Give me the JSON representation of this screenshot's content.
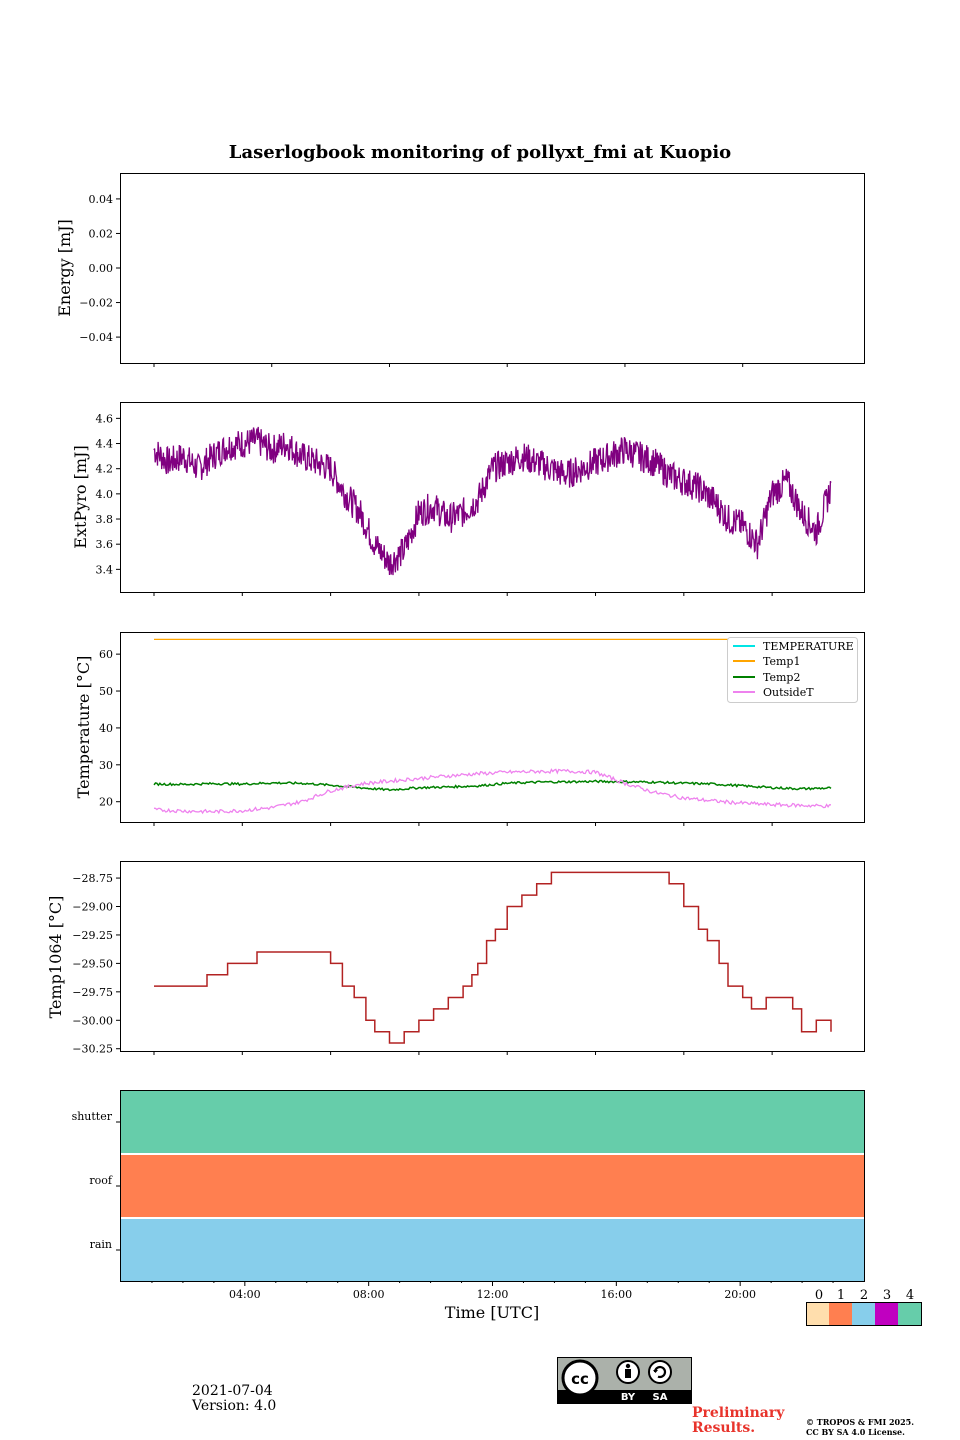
{
  "title": "Laserlogbook monitoring of pollyxt_fmi at Kuopio",
  "footer": {
    "date": "2021-07-04",
    "version": "Version: 4.0",
    "preliminary_line1": "Preliminary",
    "preliminary_line2": "Results.",
    "copyright_line1": "© TROPOS & FMI 2025.",
    "copyright_line2": "CC BY SA 4.0 License.",
    "cc_icon": "cc-by-sa-badge",
    "cc_by": "BY",
    "cc_sa": "SA"
  },
  "colors": {
    "extpyro": "#800080",
    "temperature": "#00e5e5",
    "temp1": "#ffa500",
    "temp2": "#008000",
    "outside": "#ee82ee",
    "temp1064": "#b22222",
    "status0": "#ffdead",
    "status1": "#ff7f50",
    "status2": "#87ceeb",
    "status3": "#c000c0",
    "status4": "#66cdaa"
  },
  "chart_data": [
    {
      "type": "line",
      "panel": "energy",
      "ylabel": "Energy [mJ]",
      "ylim": [
        -0.055,
        0.055
      ],
      "yticks": [
        0.04,
        0.02,
        0.0,
        -0.02,
        -0.04
      ],
      "ytick_labels": [
        "0.04",
        "0.02",
        "0.00",
        "−0.02",
        "−0.04"
      ],
      "series": []
    },
    {
      "type": "line",
      "panel": "extpyro",
      "ylabel": "ExtPyro [mJ]",
      "ylim": [
        3.22,
        4.73
      ],
      "yticks": [
        4.6,
        4.4,
        4.2,
        4.0,
        3.8,
        3.6,
        3.4
      ],
      "ytick_labels": [
        "4.6",
        "4.4",
        "4.2",
        "4.0",
        "3.8",
        "3.6",
        "3.4"
      ],
      "series": [
        {
          "name": "ExtPyro",
          "x": [
            0.0,
            0.5,
            1.0,
            1.5,
            2.0,
            2.5,
            3.0,
            3.5,
            4.0,
            4.5,
            5.0,
            5.5,
            6.0,
            6.5,
            7.0,
            7.5,
            8.0,
            8.5,
            9.0,
            9.5,
            10.0,
            10.5,
            11.0,
            11.5,
            12.0,
            12.5,
            13.0,
            13.5,
            14.0,
            14.5,
            15.0,
            15.5,
            16.0,
            16.5,
            17.0,
            17.5,
            18.0,
            18.5,
            19.0,
            19.5,
            20.0,
            20.5,
            21.0,
            21.5,
            22.0,
            22.5,
            23.0
          ],
          "values": [
            4.35,
            4.25,
            4.3,
            4.2,
            4.3,
            4.38,
            4.4,
            4.42,
            4.35,
            4.4,
            4.3,
            4.25,
            4.2,
            4.0,
            3.85,
            3.6,
            3.45,
            3.55,
            3.85,
            3.9,
            3.8,
            3.85,
            3.95,
            4.2,
            4.25,
            4.3,
            4.25,
            4.2,
            4.15,
            4.2,
            4.25,
            4.3,
            4.35,
            4.3,
            4.25,
            4.15,
            4.1,
            4.05,
            3.95,
            3.8,
            3.75,
            3.6,
            4.0,
            4.1,
            3.85,
            3.7,
            4.05
          ],
          "noise": 0.12
        }
      ]
    },
    {
      "type": "line",
      "panel": "temperature",
      "ylabel": "Temperature [°C]",
      "ylim": [
        14.5,
        66.0
      ],
      "yticks": [
        60,
        50,
        40,
        30,
        20
      ],
      "ytick_labels": [
        "60",
        "50",
        "40",
        "30",
        "20"
      ],
      "legend_position": "upper-right",
      "series": [
        {
          "name": "TEMPERATURE",
          "x": [],
          "values": []
        },
        {
          "name": "Temp1",
          "x": [
            0,
            23
          ],
          "values": [
            64,
            64
          ]
        },
        {
          "name": "Temp2",
          "x": [
            0,
            1,
            2,
            3,
            4,
            5,
            6,
            7,
            8,
            9,
            10,
            11,
            12,
            13,
            14,
            15,
            16,
            17,
            18,
            19,
            20,
            21,
            22,
            23
          ],
          "values": [
            24.8,
            24.7,
            24.9,
            24.8,
            25.1,
            25.0,
            24.5,
            23.8,
            23.2,
            23.8,
            24.0,
            24.3,
            25.0,
            25.3,
            25.4,
            25.5,
            25.4,
            25.3,
            25.0,
            24.8,
            24.3,
            23.8,
            23.5,
            23.7
          ],
          "noise": 0.3
        },
        {
          "name": "OutsideT",
          "x": [
            0,
            1,
            2,
            3,
            4,
            5,
            6,
            7,
            8,
            9,
            10,
            11,
            12,
            13,
            14,
            15,
            16,
            17,
            18,
            19,
            20,
            21,
            22,
            23
          ],
          "values": [
            17.8,
            17.5,
            17.3,
            17.6,
            18.4,
            20.0,
            23.0,
            24.8,
            25.6,
            26.3,
            27.0,
            27.6,
            28.0,
            28.2,
            28.3,
            28.0,
            25.0,
            22.5,
            21.0,
            20.2,
            19.6,
            19.2,
            19.0,
            18.8
          ],
          "noise": 0.5
        }
      ]
    },
    {
      "type": "line",
      "panel": "temp1064",
      "ylabel": "Temp1064 [°C]",
      "ylim": [
        -30.27,
        -28.6
      ],
      "yticks": [
        -28.75,
        -29.0,
        -29.25,
        -29.5,
        -29.75,
        -30.0,
        -30.25
      ],
      "ytick_labels": [
        "−28.75",
        "−29.00",
        "−29.25",
        "−29.50",
        "−29.75",
        "−30.00",
        "−30.25"
      ],
      "series": [
        {
          "name": "Temp1064",
          "x": [
            0.0,
            0.5,
            1.2,
            1.8,
            2.5,
            3.0,
            3.5,
            4.2,
            4.8,
            5.5,
            6.0,
            6.4,
            6.8,
            7.2,
            7.5,
            8.0,
            8.5,
            9.0,
            9.5,
            10.0,
            10.5,
            10.8,
            11.0,
            11.3,
            11.6,
            12.0,
            12.5,
            13.0,
            13.5,
            14.0,
            15.0,
            16.0,
            16.5,
            17.0,
            17.5,
            18.0,
            18.5,
            18.8,
            19.2,
            19.5,
            20.0,
            20.3,
            20.8,
            21.3,
            21.7,
            22.0,
            22.5,
            23.0
          ],
          "values": [
            -29.7,
            -29.7,
            -29.7,
            -29.6,
            -29.5,
            -29.5,
            -29.4,
            -29.4,
            -29.4,
            -29.4,
            -29.5,
            -29.7,
            -29.8,
            -30.0,
            -30.1,
            -30.2,
            -30.1,
            -30.0,
            -29.9,
            -29.8,
            -29.7,
            -29.6,
            -29.5,
            -29.3,
            -29.2,
            -29.0,
            -28.9,
            -28.8,
            -28.7,
            -28.7,
            -28.7,
            -28.7,
            -28.7,
            -28.7,
            -28.8,
            -29.0,
            -29.2,
            -29.3,
            -29.5,
            -29.7,
            -29.8,
            -29.9,
            -29.8,
            -29.8,
            -29.9,
            -30.1,
            -30.0,
            -30.1
          ]
        }
      ]
    },
    {
      "type": "heatmap",
      "panel": "status",
      "rows": [
        "shutter",
        "roof",
        "rain"
      ],
      "row_values": [
        4,
        1,
        2
      ],
      "xlabel": "Time [UTC]",
      "xlim": [
        0,
        24
      ],
      "xticks": [
        4,
        8,
        12,
        16,
        20
      ],
      "xtick_labels": [
        "04:00",
        "08:00",
        "12:00",
        "16:00",
        "20:00"
      ],
      "colorbar_labels": [
        "0",
        "1",
        "2",
        "3",
        "4"
      ]
    }
  ]
}
